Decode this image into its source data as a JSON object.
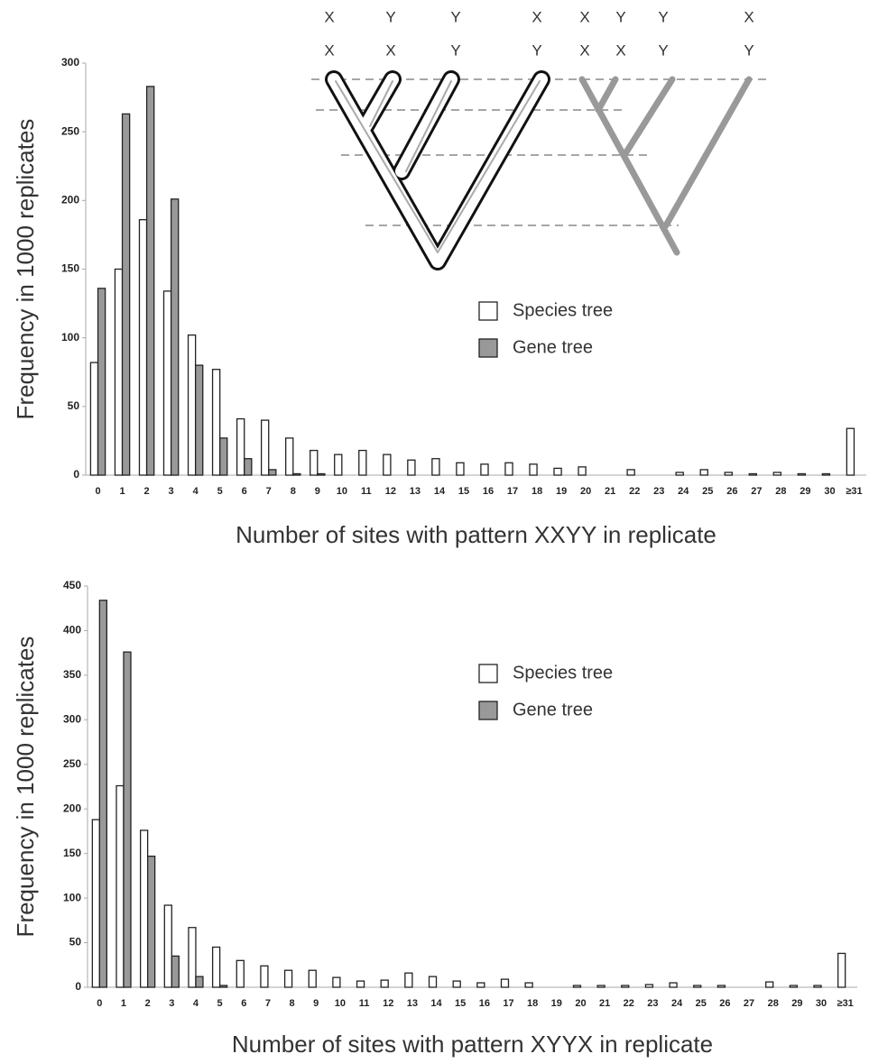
{
  "chart_data": [
    {
      "type": "bar",
      "x_label": "Number of sites with pattern XXYY in replicate",
      "y_label": "Frequency in 1000 replicates",
      "categories": [
        "0",
        "1",
        "2",
        "3",
        "4",
        "5",
        "6",
        "7",
        "8",
        "9",
        "10",
        "11",
        "12",
        "13",
        "14",
        "15",
        "16",
        "17",
        "18",
        "19",
        "20",
        "21",
        "22",
        "23",
        "24",
        "25",
        "26",
        "27",
        "28",
        "29",
        "30",
        "≥31"
      ],
      "series": [
        {
          "name": "Species tree",
          "color": "#ffffff",
          "values": [
            82,
            150,
            186,
            134,
            102,
            77,
            41,
            40,
            27,
            18,
            15,
            18,
            15,
            11,
            12,
            9,
            8,
            9,
            8,
            5,
            6,
            0,
            4,
            0,
            2,
            4,
            2,
            1,
            2,
            1,
            1,
            34
          ]
        },
        {
          "name": "Gene tree",
          "color": "#999999",
          "values": [
            136,
            263,
            283,
            201,
            80,
            27,
            12,
            4,
            1,
            1,
            0,
            0,
            0,
            0,
            0,
            0,
            0,
            0,
            0,
            0,
            0,
            0,
            0,
            0,
            0,
            0,
            0,
            0,
            0,
            0,
            0,
            0
          ]
        }
      ],
      "ylim": [
        0,
        300
      ],
      "yticks": [
        0,
        50,
        100,
        150,
        200,
        250,
        300
      ],
      "annotations": {
        "top": [
          "X",
          "Y",
          "Y",
          "X",
          "X",
          "Y",
          "Y",
          "X"
        ],
        "bottom": [
          "X",
          "X",
          "Y",
          "Y",
          "X",
          "X",
          "Y",
          "Y"
        ]
      }
    },
    {
      "type": "bar",
      "x_label": "Number of sites with pattern XYYX in replicate",
      "y_label": "Frequency in 1000 replicates",
      "categories": [
        "0",
        "1",
        "2",
        "3",
        "4",
        "5",
        "6",
        "7",
        "8",
        "9",
        "10",
        "11",
        "12",
        "13",
        "14",
        "15",
        "16",
        "17",
        "18",
        "19",
        "20",
        "21",
        "22",
        "23",
        "24",
        "25",
        "26",
        "27",
        "28",
        "29",
        "30",
        "≥31"
      ],
      "series": [
        {
          "name": "Species tree",
          "color": "#ffffff",
          "values": [
            188,
            226,
            176,
            92,
            67,
            45,
            30,
            24,
            19,
            19,
            11,
            7,
            8,
            16,
            12,
            7,
            5,
            9,
            5,
            0,
            2,
            2,
            2,
            3,
            5,
            2,
            2,
            0,
            6,
            2,
            2,
            38
          ]
        },
        {
          "name": "Gene tree",
          "color": "#999999",
          "values": [
            434,
            376,
            147,
            35,
            12,
            2,
            0,
            0,
            0,
            0,
            0,
            0,
            0,
            0,
            0,
            0,
            0,
            0,
            0,
            0,
            0,
            0,
            0,
            0,
            0,
            0,
            0,
            0,
            0,
            0,
            0,
            0
          ]
        }
      ],
      "ylim": [
        0,
        450
      ],
      "yticks": [
        0,
        50,
        100,
        150,
        200,
        250,
        300,
        350,
        400,
        450
      ]
    }
  ]
}
